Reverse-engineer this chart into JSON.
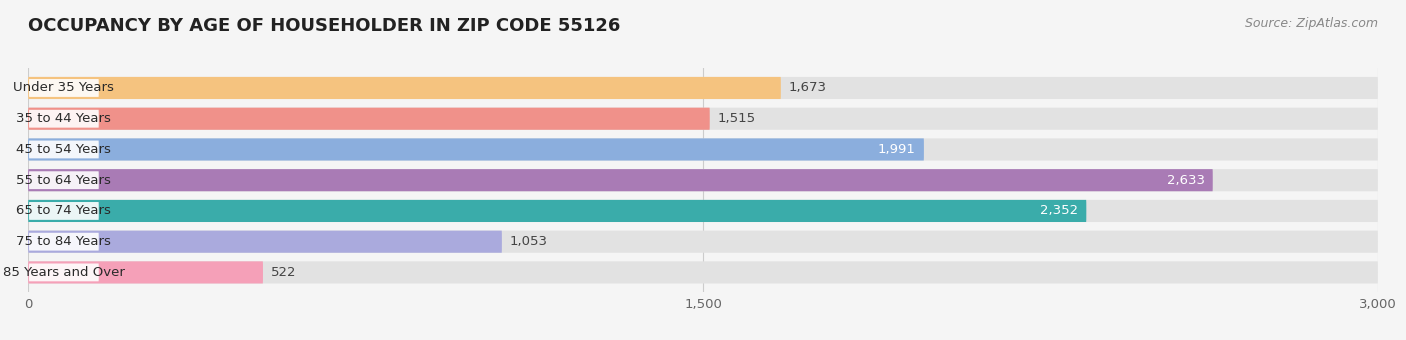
{
  "title": "OCCUPANCY BY AGE OF HOUSEHOLDER IN ZIP CODE 55126",
  "source": "Source: ZipAtlas.com",
  "categories": [
    "Under 35 Years",
    "35 to 44 Years",
    "45 to 54 Years",
    "55 to 64 Years",
    "65 to 74 Years",
    "75 to 84 Years",
    "85 Years and Over"
  ],
  "values": [
    1673,
    1515,
    1991,
    2633,
    2352,
    1053,
    522
  ],
  "bar_colors": [
    "#F5C37F",
    "#F0918A",
    "#8BAEDD",
    "#A97BB5",
    "#3AACAA",
    "#AAAADD",
    "#F5A0B8"
  ],
  "xlim": [
    0,
    3000
  ],
  "xticks": [
    0,
    1500,
    3000
  ],
  "background_color": "#f5f5f5",
  "bar_background_color": "#e2e2e2",
  "title_fontsize": 13,
  "source_fontsize": 9,
  "label_fontsize": 9.5,
  "value_fontsize": 9.5,
  "tick_fontsize": 9.5
}
